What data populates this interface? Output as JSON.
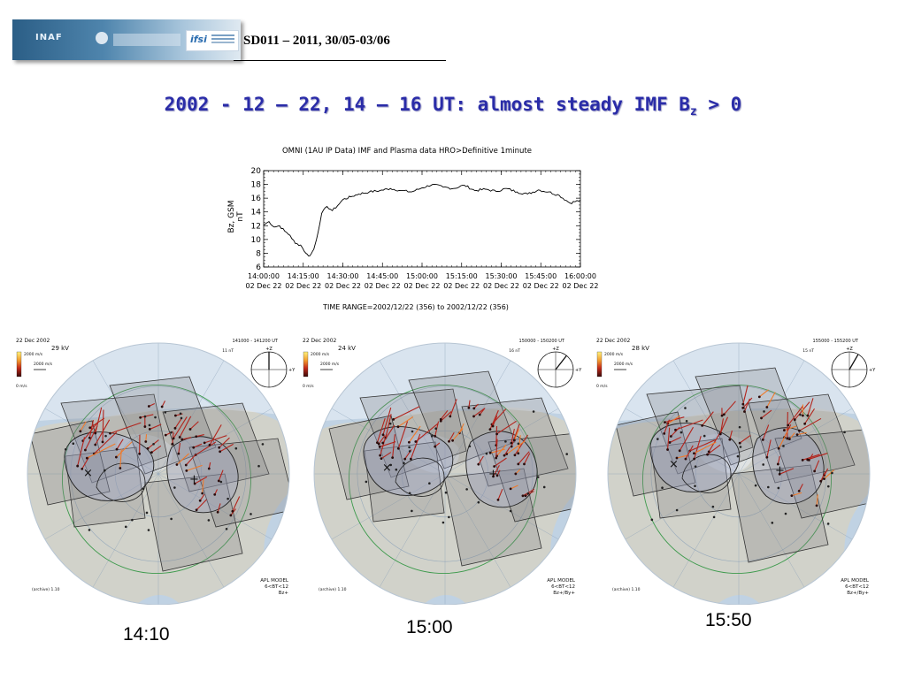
{
  "header": {
    "logo_left": "INAF",
    "logo_right": "ifsi",
    "event_text": "SD011 – 2011, 30/05-03/06"
  },
  "title": {
    "main": "2002 - 12 – 22, 14 – 16 UT: almost steady IMF B",
    "sub": "z",
    "tail": " > 0"
  },
  "chart_data": {
    "type": "line",
    "title": "OMNI (1AU IP Data)  IMF and Plasma data  HRO>Definitive 1minute",
    "ylabel": "Bz, GSM",
    "yunit": "nT",
    "ylim": [
      6,
      20
    ],
    "yticks": [
      "20",
      "18",
      "16",
      "14",
      "12",
      "10",
      "8",
      "6"
    ],
    "xticks": [
      {
        "time": "14:00:00",
        "date": "02 Dec 22"
      },
      {
        "time": "14:15:00",
        "date": "02 Dec 22"
      },
      {
        "time": "14:30:00",
        "date": "02 Dec 22"
      },
      {
        "time": "14:45:00",
        "date": "02 Dec 22"
      },
      {
        "time": "15:00:00",
        "date": "02 Dec 22"
      },
      {
        "time": "15:15:00",
        "date": "02 Dec 22"
      },
      {
        "time": "15:30:00",
        "date": "02 Dec 22"
      },
      {
        "time": "15:45:00",
        "date": "02 Dec 22"
      },
      {
        "time": "16:00:00",
        "date": "02 Dec 22"
      }
    ],
    "footer": "TIME RANGE=2002/12/22 (356) to 2002/12/22 (356)",
    "series": [
      {
        "x": [
          0,
          2,
          4,
          6,
          8,
          10,
          12,
          14,
          16,
          17,
          18,
          19,
          20,
          22,
          24,
          26,
          28,
          30,
          33,
          36,
          40,
          44,
          48,
          52,
          56,
          60,
          64,
          68,
          72,
          76,
          80,
          84,
          88,
          92,
          96,
          100,
          104,
          108,
          112,
          116,
          120
        ],
        "values": [
          12.1,
          12.6,
          11.8,
          12.0,
          11.2,
          10.6,
          9.4,
          9.2,
          8.0,
          7.6,
          7.9,
          8.6,
          10.0,
          13.8,
          14.8,
          14.2,
          14.9,
          15.8,
          16.2,
          16.6,
          16.9,
          17.1,
          17.4,
          17.1,
          16.9,
          17.5,
          18.0,
          17.6,
          17.4,
          17.9,
          17.1,
          17.3,
          17.0,
          17.4,
          16.9,
          16.6,
          17.2,
          16.9,
          16.4,
          15.3,
          15.7
        ]
      }
    ]
  },
  "panels": [
    {
      "date": "22 Dec 2002",
      "kv": "29 kV",
      "ut": "141000 - 141200 UT",
      "imf_mag": "11 nT",
      "model_title": "APL MODEL",
      "model_bt": "6<BT<12",
      "model_cond": "Bz+",
      "archive": "(archive) 1.10",
      "scale1": "2000 m/s",
      "scale2": "2000 m/s",
      "scale3": "0 m/s",
      "angle_deg": 0,
      "label": "14:10"
    },
    {
      "date": "22 Dec 2002",
      "kv": "24 kV",
      "ut": "150000 - 150200 UT",
      "imf_mag": "16 nT",
      "model_title": "APL MODEL",
      "model_bt": "6<BT<12",
      "model_cond": "Bz+/By+",
      "archive": "(archive) 1.10",
      "scale1": "2000 m/s",
      "scale2": "2000 m/s",
      "scale3": "0 m/s",
      "angle_deg": 38,
      "label": "15:00"
    },
    {
      "date": "22 Dec 2002",
      "kv": "28 kV",
      "ut": "155000 - 155200 UT",
      "imf_mag": "15 nT",
      "model_title": "APL MODEL",
      "model_bt": "6<BT<12",
      "model_cond": "Bz+/By+",
      "archive": "(archive) 1.10",
      "scale1": "2000 m/s",
      "scale2": "2000 m/s",
      "scale3": "0 m/s",
      "angle_deg": 30,
      "label": "15:50"
    }
  ],
  "colors": {
    "title": "#2a2ca8",
    "ocean": "#b9cde0",
    "land": "#cfcfc4",
    "vector": "#b3241c"
  }
}
